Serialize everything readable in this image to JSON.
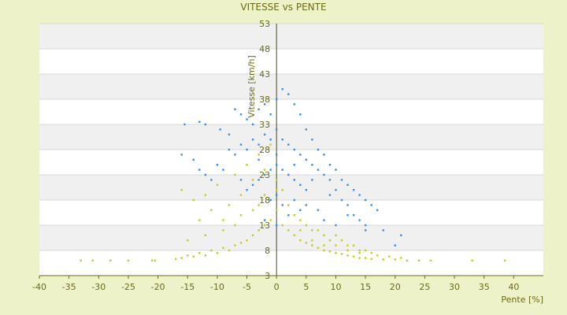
{
  "chart_data": {
    "type": "scatter",
    "title": "VITESSE vs PENTE",
    "xlabel": "Pente [%]",
    "ylabel": "Vitesse [km/h]",
    "xlim": [
      -40,
      45
    ],
    "ylim": [
      3,
      53
    ],
    "xticks": [
      -40,
      -35,
      -30,
      -25,
      -20,
      -15,
      -10,
      -5,
      0,
      5,
      10,
      15,
      20,
      25,
      30,
      35,
      40
    ],
    "yticks": [
      3,
      8,
      13,
      18,
      23,
      28,
      33,
      38,
      43,
      48,
      53
    ],
    "grid": "horizontal banded",
    "colors": {
      "background": "#eef2c8",
      "band_light": "#ffffff",
      "band_dark": "#f0f0f0",
      "series_yellow": "#c8c828",
      "series_blue": "#3a8ee6",
      "axis_text": "#6b6b14"
    },
    "series": [
      {
        "color": "#c8c828",
        "points": [
          [
            -33,
            6
          ],
          [
            -31,
            6
          ],
          [
            -28,
            6
          ],
          [
            -25,
            6
          ],
          [
            -21,
            6
          ],
          [
            -20.5,
            6
          ],
          [
            -17,
            6.3
          ],
          [
            -16,
            6.5
          ],
          [
            -15,
            7
          ],
          [
            -14,
            6.8
          ],
          [
            -13,
            7.5
          ],
          [
            -12,
            7
          ],
          [
            -11,
            8
          ],
          [
            -10,
            7.5
          ],
          [
            -9,
            8.5
          ],
          [
            -8,
            8
          ],
          [
            -7,
            9
          ],
          [
            -6,
            9.5
          ],
          [
            -5,
            10
          ],
          [
            -4,
            11
          ],
          [
            -3,
            12
          ],
          [
            -2,
            13
          ],
          [
            -1,
            14
          ],
          [
            0,
            16
          ],
          [
            1,
            13
          ],
          [
            2,
            12
          ],
          [
            3,
            11
          ],
          [
            4,
            10
          ],
          [
            5,
            9.5
          ],
          [
            6,
            9
          ],
          [
            7,
            8.5
          ],
          [
            8,
            8
          ],
          [
            9,
            7.8
          ],
          [
            10,
            7.5
          ],
          [
            11,
            7.3
          ],
          [
            12,
            7
          ],
          [
            13,
            6.8
          ],
          [
            14,
            6.5
          ],
          [
            15,
            6.5
          ],
          [
            16,
            6.3
          ],
          [
            18,
            6.2
          ],
          [
            20,
            6.2
          ],
          [
            22,
            6
          ],
          [
            24,
            6
          ],
          [
            26,
            6
          ],
          [
            33,
            6
          ],
          [
            38.5,
            6
          ],
          [
            -16,
            20
          ],
          [
            -14,
            18
          ],
          [
            -13,
            14
          ],
          [
            -12,
            19
          ],
          [
            -11,
            16
          ],
          [
            -10,
            21
          ],
          [
            -9,
            14
          ],
          [
            -8,
            17
          ],
          [
            -7,
            23
          ],
          [
            -6,
            19
          ],
          [
            -5,
            25
          ],
          [
            -4,
            22
          ],
          [
            -3,
            27
          ],
          [
            -2,
            24
          ],
          [
            -1,
            29
          ],
          [
            0,
            22
          ],
          [
            1,
            20
          ],
          [
            2,
            17
          ],
          [
            3,
            15
          ],
          [
            4,
            14
          ],
          [
            5,
            13
          ],
          [
            6,
            12
          ],
          [
            7,
            12
          ],
          [
            8,
            11
          ],
          [
            9,
            10
          ],
          [
            10,
            11
          ],
          [
            11,
            10
          ],
          [
            12,
            9
          ],
          [
            13,
            9
          ],
          [
            14,
            8
          ],
          [
            15,
            8
          ],
          [
            16,
            7.5
          ],
          [
            -15,
            10
          ],
          [
            -12,
            11
          ],
          [
            -9,
            12
          ],
          [
            -7,
            13
          ],
          [
            -6,
            15
          ],
          [
            -4,
            16
          ],
          [
            -3,
            17
          ],
          [
            -2,
            19
          ],
          [
            -1,
            18
          ],
          [
            0,
            20
          ],
          [
            2,
            15
          ],
          [
            4,
            12
          ],
          [
            6,
            10
          ],
          [
            8,
            9
          ],
          [
            10,
            9
          ],
          [
            12,
            8
          ],
          [
            14,
            7.5
          ],
          [
            17,
            7
          ],
          [
            19,
            6.8
          ],
          [
            21,
            6.5
          ]
        ]
      },
      {
        "color": "#3a8ee6",
        "points": [
          [
            -15.5,
            33
          ],
          [
            -13,
            33.5
          ],
          [
            -12,
            33
          ],
          [
            -9.5,
            32
          ],
          [
            -8,
            31
          ],
          [
            -7,
            36
          ],
          [
            -6,
            35
          ],
          [
            -5,
            34
          ],
          [
            -4,
            33
          ],
          [
            -3,
            36
          ],
          [
            -2,
            37
          ],
          [
            -1,
            35
          ],
          [
            0,
            38
          ],
          [
            1,
            40
          ],
          [
            2,
            39
          ],
          [
            3,
            37
          ],
          [
            4,
            35
          ],
          [
            5,
            32
          ],
          [
            6,
            30
          ],
          [
            7,
            28
          ],
          [
            8,
            27
          ],
          [
            9,
            25
          ],
          [
            10,
            24
          ],
          [
            11,
            22
          ],
          [
            12,
            21
          ],
          [
            13,
            20
          ],
          [
            14,
            19
          ],
          [
            15,
            18
          ],
          [
            16,
            17
          ],
          [
            17,
            16
          ],
          [
            -16,
            27
          ],
          [
            -14,
            26
          ],
          [
            -13,
            24
          ],
          [
            -12,
            23
          ],
          [
            -11,
            22
          ],
          [
            -10,
            25
          ],
          [
            -9,
            24
          ],
          [
            -8,
            28
          ],
          [
            -7,
            27
          ],
          [
            -6,
            29
          ],
          [
            -5,
            28
          ],
          [
            -4,
            30
          ],
          [
            -3,
            29
          ],
          [
            -2,
            31
          ],
          [
            -1,
            30
          ],
          [
            0,
            32
          ],
          [
            1,
            30
          ],
          [
            2,
            29
          ],
          [
            3,
            28
          ],
          [
            4,
            27
          ],
          [
            5,
            26
          ],
          [
            6,
            25
          ],
          [
            7,
            24
          ],
          [
            8,
            23
          ],
          [
            9,
            22
          ],
          [
            10,
            20
          ],
          [
            11,
            18
          ],
          [
            12,
            17
          ],
          [
            13,
            15
          ],
          [
            14,
            14
          ],
          [
            15,
            12
          ],
          [
            -5,
            20
          ],
          [
            -4,
            21
          ],
          [
            -3,
            22
          ],
          [
            -2,
            23
          ],
          [
            -1,
            24
          ],
          [
            0,
            25
          ],
          [
            1,
            24
          ],
          [
            2,
            23
          ],
          [
            3,
            22
          ],
          [
            4,
            21
          ],
          [
            5,
            20
          ],
          [
            -6,
            22
          ],
          [
            -3,
            26
          ],
          [
            0,
            27
          ],
          [
            3,
            25
          ],
          [
            6,
            22
          ],
          [
            9,
            19
          ],
          [
            12,
            15
          ],
          [
            15,
            13
          ],
          [
            18,
            12
          ],
          [
            21,
            11
          ],
          [
            20,
            9
          ],
          [
            -2,
            14
          ],
          [
            0,
            13
          ],
          [
            2,
            15
          ],
          [
            4,
            16
          ],
          [
            1,
            17
          ],
          [
            -1,
            18
          ],
          [
            0,
            19
          ],
          [
            3,
            18
          ],
          [
            5,
            17
          ],
          [
            7,
            16
          ],
          [
            8,
            14
          ],
          [
            10,
            13
          ]
        ]
      }
    ]
  }
}
